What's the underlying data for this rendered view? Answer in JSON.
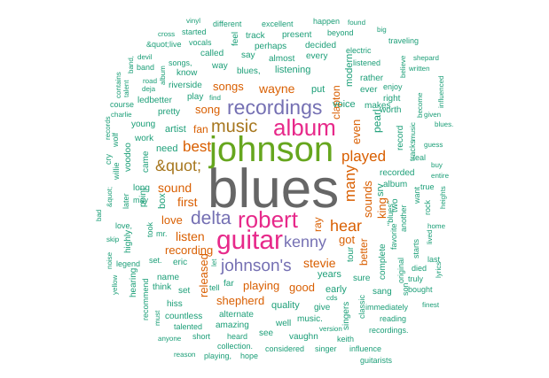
{
  "palette": {
    "green": "#1b9e77",
    "orange": "#d95f02",
    "purple": "#7570b3",
    "pink": "#e7298a",
    "lime": "#66a61e",
    "gold": "#e6ab02",
    "brown": "#a6761d",
    "gray": "#666666"
  },
  "words": [
    {
      "text": "blues",
      "color": "gray",
      "rank": 1
    },
    {
      "text": "johnson",
      "color": "lime",
      "rank": 2
    },
    {
      "text": "album",
      "color": "pink",
      "rank": 3
    },
    {
      "text": "guitar",
      "color": "pink",
      "rank": 4
    },
    {
      "text": "robert",
      "color": "pink",
      "rank": 5
    },
    {
      "text": "recordings",
      "color": "purple",
      "rank": 6
    },
    {
      "text": "delta",
      "color": "purple",
      "rank": 7
    },
    {
      "text": "johnson's",
      "color": "purple",
      "rank": 8
    },
    {
      "text": "kenny",
      "color": "purple",
      "rank": 9
    },
    {
      "text": "music",
      "color": "brown",
      "rank": 10
    },
    {
      "text": "&quot;",
      "color": "brown",
      "rank": 11
    },
    {
      "text": "best",
      "color": "orange",
      "rank": 12
    },
    {
      "text": "hear",
      "color": "orange",
      "rank": 13
    },
    {
      "text": "played",
      "color": "orange",
      "rank": 14
    },
    {
      "text": "many",
      "color": "orange",
      "rank": 15
    },
    {
      "text": "wayne",
      "color": "orange",
      "rank": 16
    },
    {
      "text": "sound",
      "color": "orange",
      "rank": 17
    },
    {
      "text": "stevie",
      "color": "orange",
      "rank": 18
    },
    {
      "text": "listen",
      "color": "orange",
      "rank": 19
    },
    {
      "text": "first",
      "color": "orange",
      "rank": 20
    },
    {
      "text": "songs",
      "color": "orange",
      "rank": 21
    },
    {
      "text": "love",
      "color": "orange",
      "rank": 22
    },
    {
      "text": "recording",
      "color": "orange",
      "rank": 23
    },
    {
      "text": "playing",
      "color": "orange",
      "rank": 24
    },
    {
      "text": "shepherd",
      "color": "orange",
      "rank": 25
    },
    {
      "text": "released",
      "color": "orange",
      "rank": 26
    },
    {
      "text": "song",
      "color": "orange",
      "rank": 27
    },
    {
      "text": "fan",
      "color": "orange",
      "rank": 28
    },
    {
      "text": "good",
      "color": "orange",
      "rank": 29
    },
    {
      "text": "ray",
      "color": "orange",
      "rank": 30
    },
    {
      "text": "even",
      "color": "orange",
      "rank": 31
    },
    {
      "text": "sounds",
      "color": "orange",
      "rank": 32
    },
    {
      "text": "better",
      "color": "orange",
      "rank": 33
    },
    {
      "text": "king",
      "color": "orange",
      "rank": 34
    },
    {
      "text": "got",
      "color": "orange",
      "rank": 35
    },
    {
      "text": "clapton",
      "color": "orange",
      "rank": 36
    },
    {
      "text": "years",
      "color": "green",
      "rank": 37
    },
    {
      "text": "listening",
      "color": "green",
      "rank": 38
    },
    {
      "text": "blues,",
      "color": "green",
      "rank": 39
    },
    {
      "text": "voice",
      "color": "green",
      "rank": 40
    },
    {
      "text": "artist",
      "color": "green",
      "rank": 41
    },
    {
      "text": "need",
      "color": "green",
      "rank": 42
    },
    {
      "text": "box",
      "color": "green",
      "rank": 43
    },
    {
      "text": "recorded",
      "color": "green",
      "rank": 44
    },
    {
      "text": "album",
      "color": "green",
      "rank": 45
    },
    {
      "text": "complete",
      "color": "green",
      "rank": 46
    },
    {
      "text": "tour",
      "color": "green",
      "rank": 47
    },
    {
      "text": "quality",
      "color": "green",
      "rank": 48
    },
    {
      "text": "early",
      "color": "green",
      "rank": 49
    },
    {
      "text": "sure",
      "color": "green",
      "rank": 50
    },
    {
      "text": "sang",
      "color": "green",
      "rank": 51
    },
    {
      "text": "give",
      "color": "green",
      "rank": 52
    },
    {
      "text": "well",
      "color": "green",
      "rank": 53
    },
    {
      "text": "music.",
      "color": "green",
      "rank": 54
    },
    {
      "text": "vaughn",
      "color": "green",
      "rank": 55
    },
    {
      "text": "singers",
      "color": "green",
      "rank": 56
    },
    {
      "text": "alternate",
      "color": "green",
      "rank": 57
    },
    {
      "text": "amazing",
      "color": "green",
      "rank": 58
    },
    {
      "text": "see",
      "color": "green",
      "rank": 59
    },
    {
      "text": "heard",
      "color": "green",
      "rank": 60
    },
    {
      "text": "countless",
      "color": "green",
      "rank": 61
    },
    {
      "text": "hiss",
      "color": "green",
      "rank": 62
    },
    {
      "text": "name",
      "color": "green",
      "rank": 63
    },
    {
      "text": "eric",
      "color": "green",
      "rank": 64
    },
    {
      "text": "think",
      "color": "green",
      "rank": 65
    },
    {
      "text": "set",
      "color": "green",
      "rank": 66
    },
    {
      "text": "far",
      "color": "green",
      "rank": 67
    },
    {
      "text": "tell",
      "color": "green",
      "rank": 68
    },
    {
      "text": "talented",
      "color": "green",
      "rank": 69
    },
    {
      "text": "short",
      "color": "green",
      "rank": 70
    },
    {
      "text": "collection.",
      "color": "green",
      "rank": 71
    },
    {
      "text": "playing,",
      "color": "green",
      "rank": 72
    },
    {
      "text": "hope",
      "color": "green",
      "rank": 73
    },
    {
      "text": "considered",
      "color": "green",
      "rank": 74
    },
    {
      "text": "singer",
      "color": "green",
      "rank": 75
    },
    {
      "text": "influence",
      "color": "green",
      "rank": 76
    },
    {
      "text": "guitarists",
      "color": "green",
      "rank": 77
    },
    {
      "text": "reason",
      "color": "green",
      "rank": 78
    },
    {
      "text": "anyone",
      "color": "green",
      "rank": 79
    },
    {
      "text": "keith",
      "color": "green",
      "rank": 80
    },
    {
      "text": "version",
      "color": "green",
      "rank": 81
    },
    {
      "text": "recordings.",
      "color": "green",
      "rank": 82
    },
    {
      "text": "reading",
      "color": "green",
      "rank": 83
    },
    {
      "text": "immediately",
      "color": "green",
      "rank": 84
    },
    {
      "text": "classic",
      "color": "green",
      "rank": 85
    },
    {
      "text": "cds",
      "color": "green",
      "rank": 86
    },
    {
      "text": "son",
      "color": "green",
      "rank": 87
    },
    {
      "text": "bought",
      "color": "green",
      "rank": 88
    },
    {
      "text": "truly",
      "color": "green",
      "rank": 89
    },
    {
      "text": "died",
      "color": "green",
      "rank": 90
    },
    {
      "text": "last",
      "color": "green",
      "rank": 91
    },
    {
      "text": "original",
      "color": "green",
      "rank": 92
    },
    {
      "text": "starts",
      "color": "green",
      "rank": 93
    },
    {
      "text": "finest",
      "color": "green",
      "rank": 94
    },
    {
      "text": "lyrics",
      "color": "green",
      "rank": 95
    },
    {
      "text": "lived",
      "color": "green",
      "rank": 96
    },
    {
      "text": "home",
      "color": "green",
      "rank": 97
    },
    {
      "text": "rock",
      "color": "green",
      "rank": 98
    },
    {
      "text": "want",
      "color": "green",
      "rank": 99
    },
    {
      "text": "heights",
      "color": "green",
      "rank": 100
    },
    {
      "text": "entire",
      "color": "green",
      "rank": 101
    },
    {
      "text": "buy",
      "color": "green",
      "rank": 102
    },
    {
      "text": "true",
      "color": "green",
      "rank": 103
    },
    {
      "text": "real",
      "color": "green",
      "rank": 104
    },
    {
      "text": "guess",
      "color": "green",
      "rank": 105
    },
    {
      "text": "tracks",
      "color": "green",
      "rank": 106
    },
    {
      "text": "blues.",
      "color": "green",
      "rank": 107
    },
    {
      "text": "given",
      "color": "green",
      "rank": 108
    },
    {
      "text": "influenced",
      "color": "green",
      "rank": 109
    },
    {
      "text": "music",
      "color": "green",
      "rank": 110
    },
    {
      "text": "become",
      "color": "green",
      "rank": 111
    },
    {
      "text": "written",
      "color": "green",
      "rank": 112
    },
    {
      "text": "believe",
      "color": "green",
      "rank": 113
    },
    {
      "text": "shepard",
      "color": "green",
      "rank": 114
    },
    {
      "text": "traveling",
      "color": "green",
      "rank": 115
    },
    {
      "text": "big",
      "color": "green",
      "rank": 116
    },
    {
      "text": "found",
      "color": "green",
      "rank": 117
    },
    {
      "text": "happen",
      "color": "green",
      "rank": 118
    },
    {
      "text": "beyond",
      "color": "green",
      "rank": 119
    },
    {
      "text": "electric",
      "color": "green",
      "rank": 120
    },
    {
      "text": "listened",
      "color": "green",
      "rank": 121
    },
    {
      "text": "rather",
      "color": "green",
      "rank": 122
    },
    {
      "text": "ever",
      "color": "green",
      "rank": 123
    },
    {
      "text": "enjoy",
      "color": "green",
      "rank": 124
    },
    {
      "text": "right",
      "color": "green",
      "rank": 125
    },
    {
      "text": "makes",
      "color": "green",
      "rank": 126
    },
    {
      "text": "worth",
      "color": "green",
      "rank": 127
    },
    {
      "text": "record",
      "color": "green",
      "rank": 128
    },
    {
      "text": "two",
      "color": "green",
      "rank": 129
    },
    {
      "text": "favorite",
      "color": "green",
      "rank": 130
    },
    {
      "text": "\"blues\"",
      "color": "green",
      "rank": 131
    },
    {
      "text": "another",
      "color": "green",
      "rank": 132
    },
    {
      "text": "pearl",
      "color": "green",
      "rank": 133
    },
    {
      "text": "srv",
      "color": "green",
      "rank": 134
    },
    {
      "text": "put",
      "color": "green",
      "rank": 135
    },
    {
      "text": "modern",
      "color": "green",
      "rank": 136
    },
    {
      "text": "every",
      "color": "green",
      "rank": 137
    },
    {
      "text": "decided",
      "color": "green",
      "rank": 138
    },
    {
      "text": "present",
      "color": "green",
      "rank": 139
    },
    {
      "text": "almost",
      "color": "green",
      "rank": 140
    },
    {
      "text": "perhaps",
      "color": "green",
      "rank": 141
    },
    {
      "text": "say",
      "color": "green",
      "rank": 142
    },
    {
      "text": "track",
      "color": "green",
      "rank": 143
    },
    {
      "text": "feel",
      "color": "green",
      "rank": 144
    },
    {
      "text": "excellent",
      "color": "green",
      "rank": 145
    },
    {
      "text": "different",
      "color": "green",
      "rank": 146
    },
    {
      "text": "vinyl",
      "color": "green",
      "rank": 147
    },
    {
      "text": "started",
      "color": "green",
      "rank": 148
    },
    {
      "text": "cross",
      "color": "green",
      "rank": 149
    },
    {
      "text": "vocals",
      "color": "green",
      "rank": 150
    },
    {
      "text": "&quot;live",
      "color": "green",
      "rank": 151
    },
    {
      "text": "called",
      "color": "green",
      "rank": 152
    },
    {
      "text": "devil",
      "color": "green",
      "rank": 153
    },
    {
      "text": "band",
      "color": "green",
      "rank": 154
    },
    {
      "text": "band,",
      "color": "green",
      "rank": 155
    },
    {
      "text": "contains",
      "color": "green",
      "rank": 156
    },
    {
      "text": "know",
      "color": "green",
      "rank": 157
    },
    {
      "text": "songs,",
      "color": "green",
      "rank": 158
    },
    {
      "text": "way",
      "color": "green",
      "rank": 159
    },
    {
      "text": "road",
      "color": "green",
      "rank": 160
    },
    {
      "text": "album",
      "color": "green",
      "rank": 161
    },
    {
      "text": "deja",
      "color": "green",
      "rank": 162
    },
    {
      "text": "riverside",
      "color": "green",
      "rank": 163
    },
    {
      "text": "talent",
      "color": "green",
      "rank": 164
    },
    {
      "text": "play",
      "color": "green",
      "rank": 165
    },
    {
      "text": "find",
      "color": "green",
      "rank": 166
    },
    {
      "text": "ledbetter",
      "color": "green",
      "rank": 167
    },
    {
      "text": "course",
      "color": "green",
      "rank": 168
    },
    {
      "text": "pretty",
      "color": "green",
      "rank": 169
    },
    {
      "text": "charlie",
      "color": "green",
      "rank": 170
    },
    {
      "text": "young",
      "color": "green",
      "rank": 171
    },
    {
      "text": "records",
      "color": "green",
      "rank": 172
    },
    {
      "text": "work",
      "color": "green",
      "rank": 173
    },
    {
      "text": "came",
      "color": "green",
      "rank": 174
    },
    {
      "text": "voodoo",
      "color": "green",
      "rank": 175
    },
    {
      "text": "wolf",
      "color": "green",
      "rank": 176
    },
    {
      "text": "cry",
      "color": "green",
      "rank": 177
    },
    {
      "text": "willie",
      "color": "green",
      "rank": 178
    },
    {
      "text": "point",
      "color": "green",
      "rank": 179
    },
    {
      "text": "long",
      "color": "green",
      "rank": 180
    },
    {
      "text": "&quot;",
      "color": "green",
      "rank": 181
    },
    {
      "text": "later",
      "color": "green",
      "rank": 182
    },
    {
      "text": "may",
      "color": "green",
      "rank": 183
    },
    {
      "text": "bad",
      "color": "green",
      "rank": 184
    },
    {
      "text": "love,",
      "color": "green",
      "rank": 185
    },
    {
      "text": "took",
      "color": "green",
      "rank": 186
    },
    {
      "text": "mr.",
      "color": "green",
      "rank": 187
    },
    {
      "text": "skip",
      "color": "green",
      "rank": 188
    },
    {
      "text": "highly",
      "color": "green",
      "rank": 189
    },
    {
      "text": "set.",
      "color": "green",
      "rank": 190
    },
    {
      "text": "legend",
      "color": "green",
      "rank": 191
    },
    {
      "text": "noise",
      "color": "green",
      "rank": 192
    },
    {
      "text": "hearing",
      "color": "green",
      "rank": 193
    },
    {
      "text": "yellow",
      "color": "green",
      "rank": 194
    },
    {
      "text": "recommend",
      "color": "green",
      "rank": 195
    },
    {
      "text": "must",
      "color": "green",
      "rank": 196
    },
    {
      "text": "let",
      "color": "green",
      "rank": 197
    }
  ]
}
